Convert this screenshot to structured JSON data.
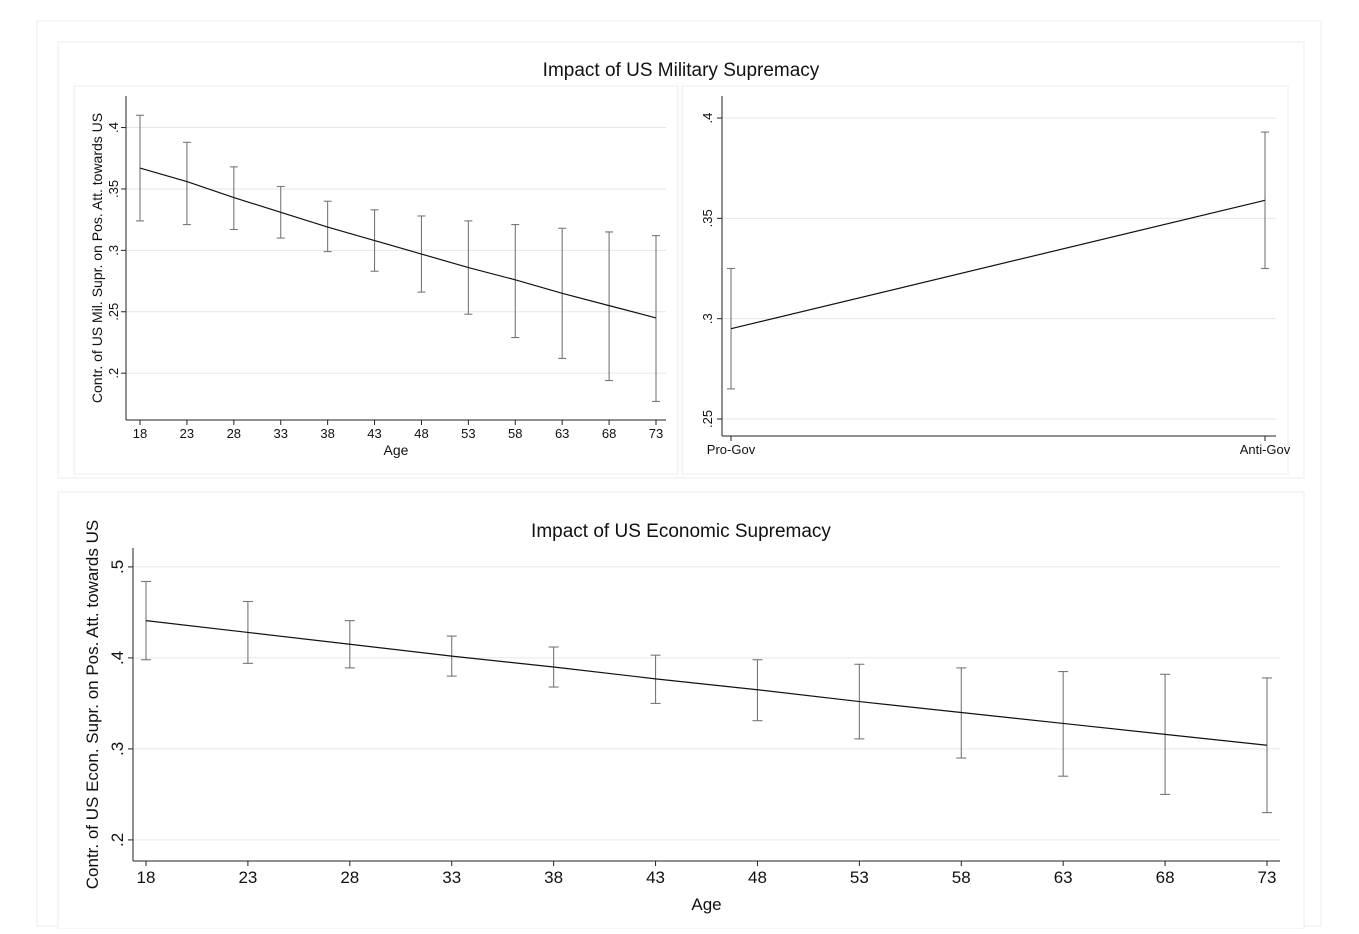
{
  "top_title": "Impact of US Military Supremacy",
  "bottom_title": "Impact of US Economic Supremacy",
  "chart_data": [
    {
      "type": "line",
      "id": "mil-age",
      "ylabel": "Contr. of US Mil. Supr. on Pos. Att. towards US",
      "xlabel": "Age",
      "x": [
        18,
        23,
        28,
        33,
        38,
        43,
        48,
        53,
        58,
        63,
        68,
        73
      ],
      "x_tick_labels": [
        "18",
        "23",
        "28",
        "33",
        "38",
        "43",
        "48",
        "53",
        "58",
        "63",
        "68",
        "73"
      ],
      "xlim": [
        18,
        73
      ],
      "ylim": [
        0.17,
        0.42
      ],
      "y_ticks": [
        0.2,
        0.25,
        0.3,
        0.35,
        0.4
      ],
      "y_tick_labels": [
        ".2",
        ".25",
        ".3",
        ".35",
        ".4"
      ],
      "series": [
        {
          "values": [
            0.367,
            0.356,
            0.343,
            0.331,
            0.319,
            0.308,
            0.297,
            0.286,
            0.276,
            0.265,
            0.255,
            0.245
          ],
          "ci_low": [
            0.324,
            0.321,
            0.317,
            0.31,
            0.299,
            0.283,
            0.266,
            0.248,
            0.229,
            0.212,
            0.194,
            0.177
          ],
          "ci_high": [
            0.41,
            0.388,
            0.368,
            0.352,
            0.34,
            0.333,
            0.328,
            0.324,
            0.321,
            0.318,
            0.315,
            0.312
          ]
        }
      ],
      "grid": true
    },
    {
      "type": "line",
      "id": "mil-gov",
      "ylabel": "",
      "xlabel": "",
      "categories": [
        "Pro-Gov",
        "Anti-Gov"
      ],
      "ylim": [
        0.247,
        0.405
      ],
      "y_ticks": [
        0.25,
        0.3,
        0.35,
        0.4
      ],
      "y_tick_labels": [
        ".25",
        ".3",
        ".35",
        ".4"
      ],
      "series": [
        {
          "values": [
            0.295,
            0.359
          ],
          "ci_low": [
            0.265,
            0.325
          ],
          "ci_high": [
            0.325,
            0.393
          ]
        }
      ],
      "grid": true
    },
    {
      "type": "line",
      "id": "econ-age",
      "ylabel": "Contr. of US Econ. Supr. on Pos. Att. towards US",
      "xlabel": "Age",
      "x": [
        18,
        23,
        28,
        33,
        38,
        43,
        48,
        53,
        58,
        63,
        68,
        73
      ],
      "x_tick_labels": [
        "18",
        "23",
        "28",
        "33",
        "38",
        "43",
        "48",
        "53",
        "58",
        "63",
        "68",
        "73"
      ],
      "xlim": [
        18,
        73
      ],
      "ylim": [
        0.19,
        0.512
      ],
      "y_ticks": [
        0.2,
        0.3,
        0.4,
        0.5
      ],
      "y_tick_labels": [
        ".2",
        ".3",
        ".4",
        ".5"
      ],
      "series": [
        {
          "values": [
            0.441,
            0.428,
            0.415,
            0.402,
            0.39,
            0.377,
            0.365,
            0.352,
            0.34,
            0.328,
            0.316,
            0.304
          ],
          "ci_low": [
            0.398,
            0.394,
            0.389,
            0.38,
            0.368,
            0.35,
            0.331,
            0.311,
            0.29,
            0.27,
            0.25,
            0.23
          ],
          "ci_high": [
            0.484,
            0.462,
            0.441,
            0.424,
            0.412,
            0.403,
            0.398,
            0.393,
            0.389,
            0.385,
            0.382,
            0.378
          ]
        }
      ],
      "grid": true
    }
  ]
}
